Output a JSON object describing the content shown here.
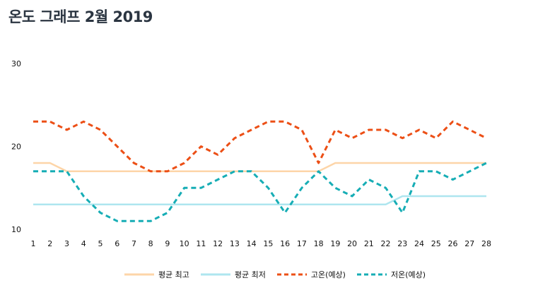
{
  "title": "온도 그래프 2월 2019",
  "chart_data": {
    "type": "line",
    "x": [
      1,
      2,
      3,
      4,
      5,
      6,
      7,
      8,
      9,
      10,
      11,
      12,
      13,
      14,
      15,
      16,
      17,
      18,
      19,
      20,
      21,
      22,
      23,
      24,
      25,
      26,
      27,
      28
    ],
    "ylim": [
      10,
      30
    ],
    "yticks": [
      10,
      20,
      30
    ],
    "grid": false,
    "legend_position": "bottom",
    "series": [
      {
        "name": "평균 최고",
        "color": "#fdd5a8",
        "dashed": false,
        "values": [
          18,
          18,
          17,
          17,
          17,
          17,
          17,
          17,
          17,
          17,
          17,
          17,
          17,
          17,
          17,
          17,
          17,
          17,
          18,
          18,
          18,
          18,
          18,
          18,
          18,
          18,
          18,
          18
        ]
      },
      {
        "name": "평균 최저",
        "color": "#aee6ef",
        "dashed": false,
        "values": [
          13,
          13,
          13,
          13,
          13,
          13,
          13,
          13,
          13,
          13,
          13,
          13,
          13,
          13,
          13,
          13,
          13,
          13,
          13,
          13,
          13,
          13,
          14,
          14,
          14,
          14,
          14,
          14
        ]
      },
      {
        "name": "고온(예상)",
        "color": "#ec4f16",
        "dashed": true,
        "values": [
          23,
          23,
          22,
          23,
          22,
          20,
          18,
          17,
          17,
          18,
          20,
          19,
          21,
          22,
          23,
          23,
          22,
          18,
          22,
          21,
          22,
          22,
          21,
          22,
          21,
          23,
          22,
          21
        ]
      },
      {
        "name": "저온(예상)",
        "color": "#16adb5",
        "dashed": true,
        "values": [
          17,
          17,
          17,
          14,
          12,
          11,
          11,
          11,
          12,
          15,
          15,
          16,
          17,
          17,
          15,
          12,
          15,
          17,
          15,
          14,
          16,
          15,
          12,
          17,
          17,
          16,
          17,
          18
        ]
      }
    ]
  }
}
